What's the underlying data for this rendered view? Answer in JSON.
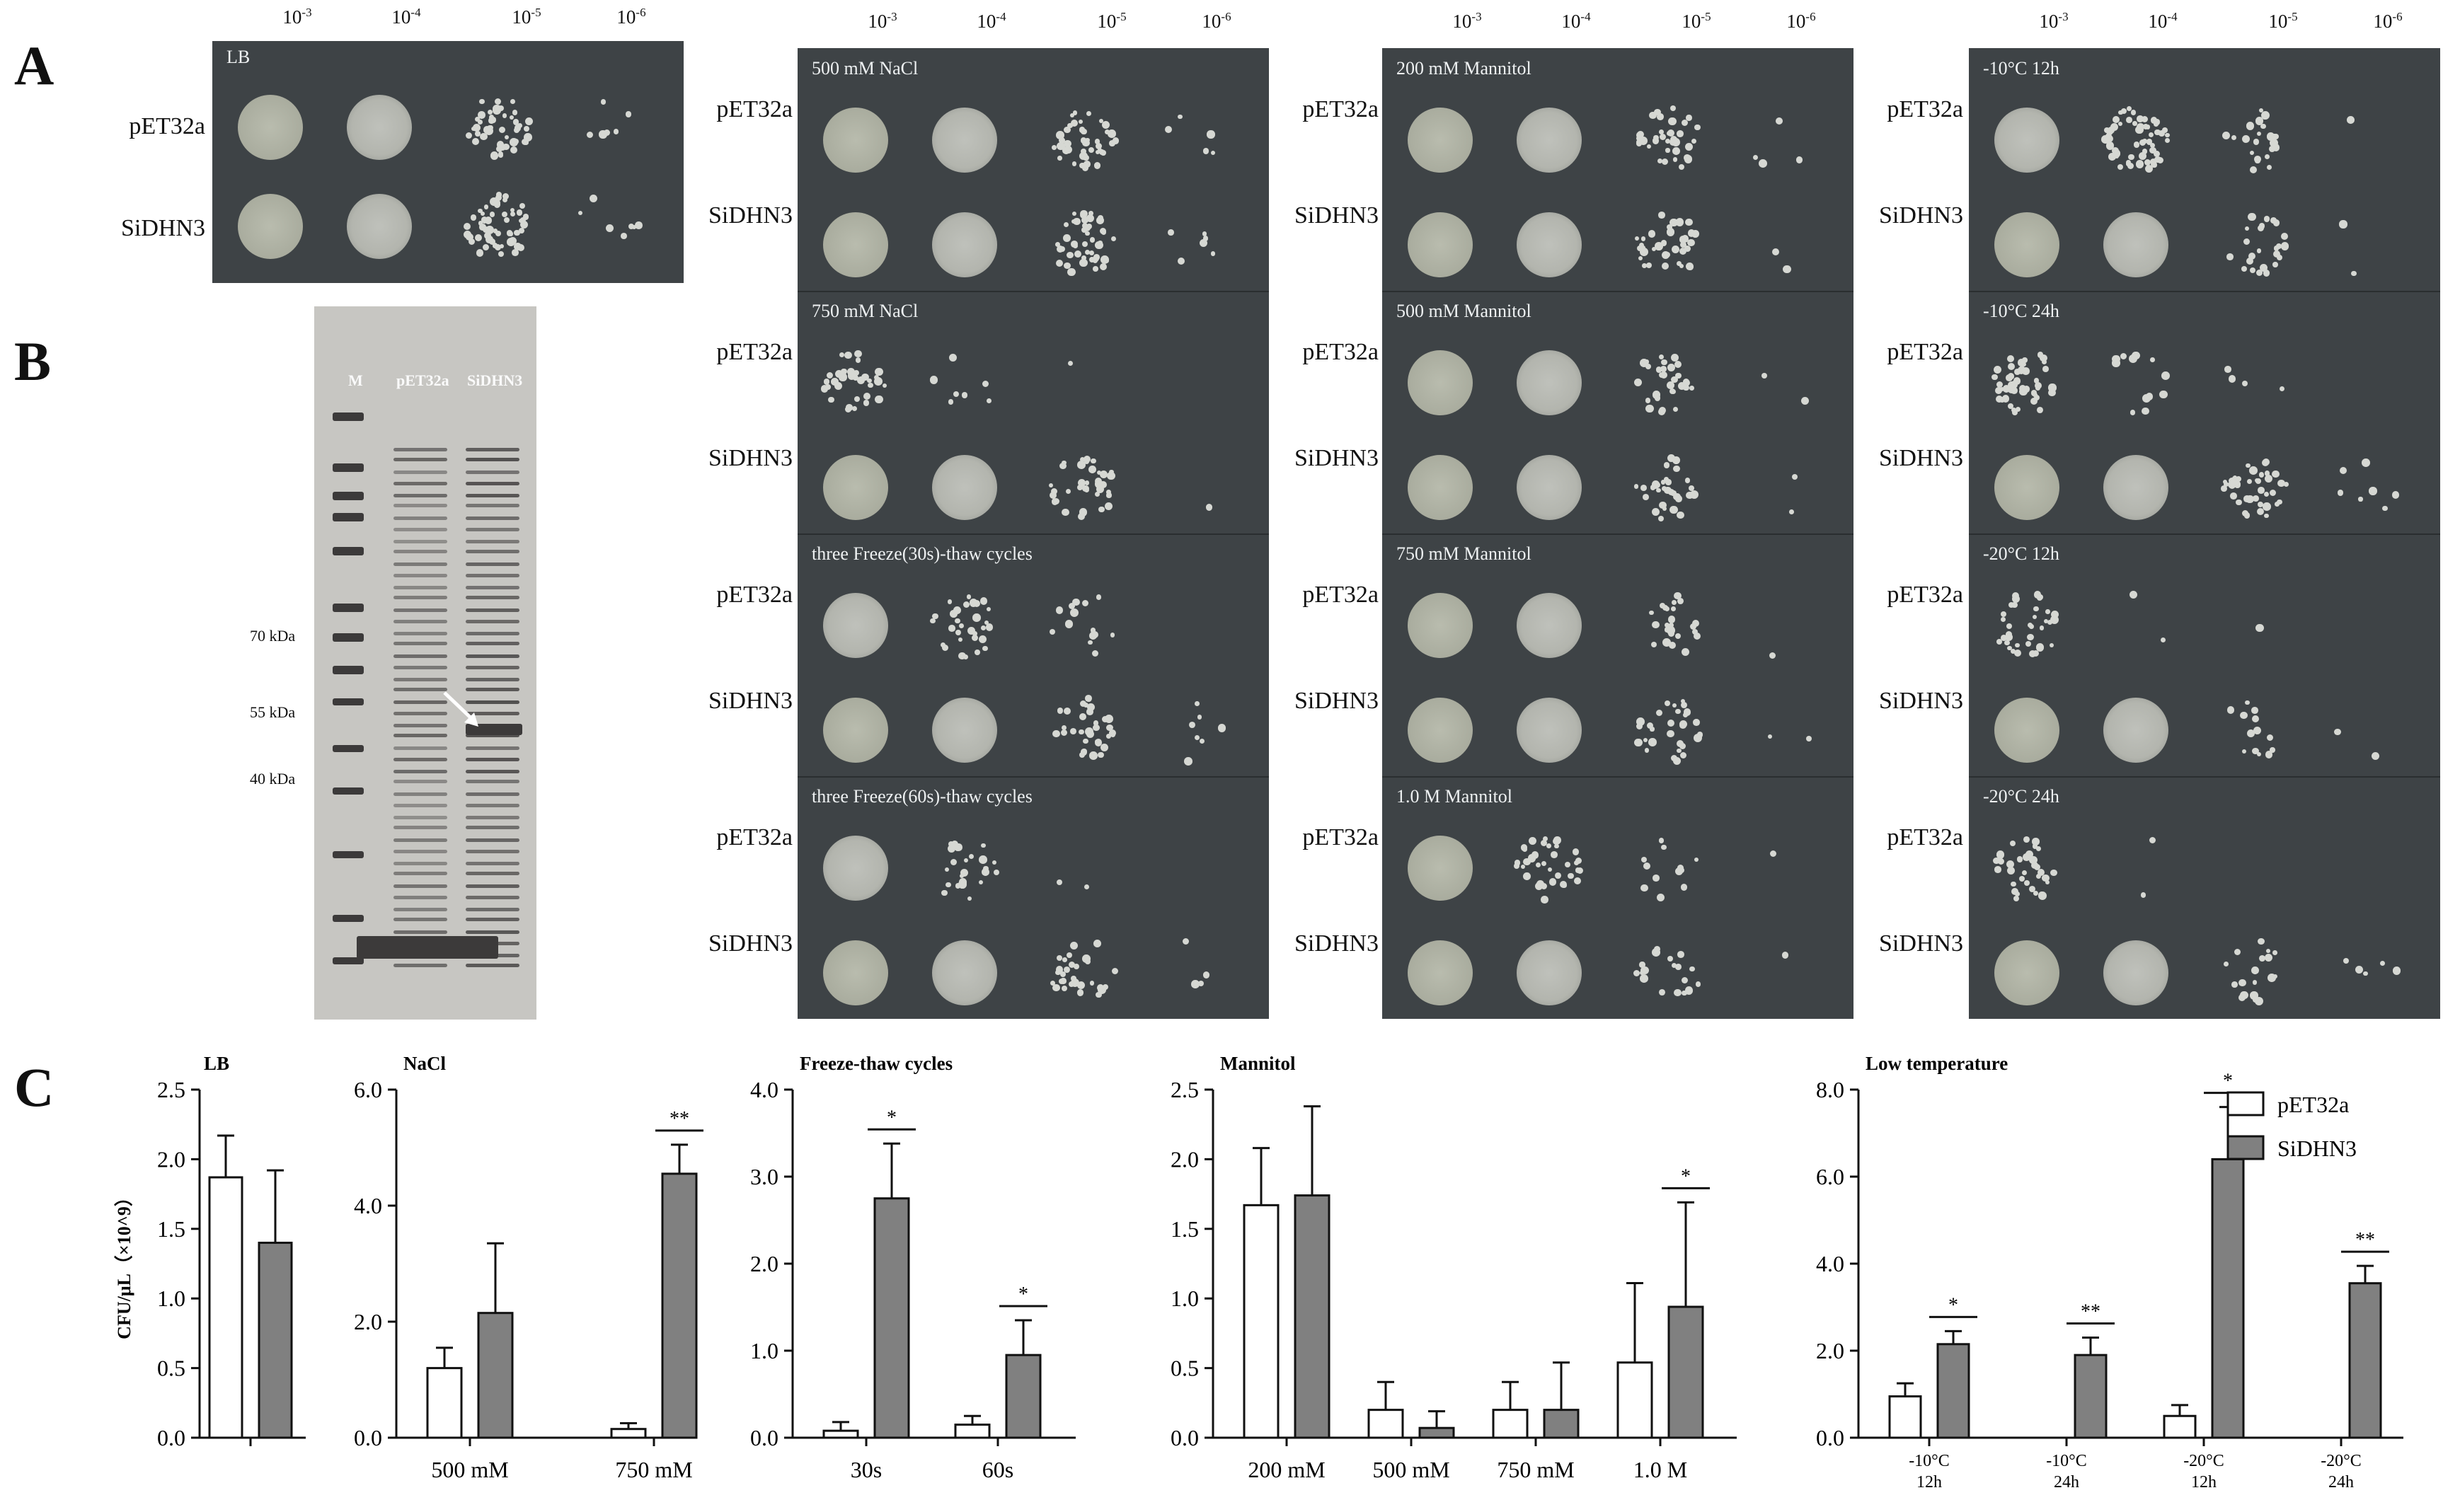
{
  "panels": {
    "a": "A",
    "b": "B",
    "c": "C"
  },
  "dilutions": [
    {
      "base": "10",
      "exp": "-3"
    },
    {
      "base": "10",
      "exp": "-4"
    },
    {
      "base": "10",
      "exp": "-5"
    },
    {
      "base": "10",
      "exp": "-6"
    }
  ],
  "strains": {
    "control": "pET32a",
    "transgenic": "SiDHN3"
  },
  "plates": {
    "lb": "LB",
    "nacl": [
      "500 mM NaCl",
      "750 mM NaCl",
      "three Freeze(30s)-thaw cycles",
      "three Freeze(60s)-thaw cycles"
    ],
    "mannitol": [
      "200 mM Mannitol",
      "500 mM Mannitol",
      "750 mM Mannitol",
      "1.0 M Mannitol"
    ],
    "cold": [
      "-10°C 12h",
      "-10°C 24h",
      "-20°C 12h",
      "-20°C 24h"
    ]
  },
  "gel": {
    "lanes": [
      "M",
      "pET32a",
      "SiDHN3"
    ],
    "markers": [
      "70 kDa",
      "55 kDa",
      "40 kDa"
    ]
  },
  "colors": {
    "plate_bg": "#3e4346",
    "bar_control": "#ffffff",
    "bar_transgenic": "#808080"
  },
  "chart_data": [
    {
      "type": "bar",
      "title": "LB",
      "ylabel": "CFU/μL（×10^9）",
      "ylim": [
        0,
        2.5
      ],
      "yticks": [
        "0.0",
        "0.5",
        "1.0",
        "1.5",
        "2.0",
        "2.5"
      ],
      "categories": [
        ""
      ],
      "series": [
        {
          "name": "pET32a",
          "values": [
            1.87
          ],
          "errors": [
            0.3
          ]
        },
        {
          "name": "SiDHN3",
          "values": [
            1.4
          ],
          "errors": [
            0.52
          ]
        }
      ],
      "significance": [
        ""
      ]
    },
    {
      "type": "bar",
      "title": "NaCl",
      "ylim": [
        0,
        6.0
      ],
      "yticks": [
        "0.0",
        "2.0",
        "4.0",
        "6.0"
      ],
      "categories": [
        "500 mM",
        "750 mM"
      ],
      "series": [
        {
          "name": "pET32a",
          "values": [
            1.2,
            0.15
          ],
          "errors": [
            0.35,
            0.1
          ]
        },
        {
          "name": "SiDHN3",
          "values": [
            2.15,
            4.55
          ],
          "errors": [
            1.2,
            0.5
          ]
        }
      ],
      "significance": [
        "",
        "**"
      ]
    },
    {
      "type": "bar",
      "title": "Freeze-thaw cycles",
      "ylim": [
        0,
        4.0
      ],
      "yticks": [
        "0.0",
        "1.0",
        "2.0",
        "3.0",
        "4.0"
      ],
      "categories": [
        "30s",
        "60s"
      ],
      "series": [
        {
          "name": "pET32a",
          "values": [
            0.08,
            0.15
          ],
          "errors": [
            0.1,
            0.1
          ]
        },
        {
          "name": "SiDHN3",
          "values": [
            2.75,
            0.95
          ],
          "errors": [
            0.63,
            0.4
          ]
        }
      ],
      "significance": [
        "*",
        "*"
      ]
    },
    {
      "type": "bar",
      "title": "Mannitol",
      "ylim": [
        0,
        2.5
      ],
      "yticks": [
        "0.0",
        "0.5",
        "1.0",
        "1.5",
        "2.0",
        "2.5"
      ],
      "categories": [
        "200 mM",
        "500 mM",
        "750 mM",
        "1.0 M"
      ],
      "series": [
        {
          "name": "pET32a",
          "values": [
            1.67,
            0.2,
            0.2,
            0.54
          ],
          "errors": [
            0.41,
            0.2,
            0.2,
            0.57
          ]
        },
        {
          "name": "SiDHN3",
          "values": [
            1.74,
            0.07,
            0.2,
            0.94
          ],
          "errors": [
            0.64,
            0.12,
            0.34,
            0.75
          ]
        }
      ],
      "significance": [
        "",
        "",
        "",
        "*"
      ]
    },
    {
      "type": "bar",
      "title": "Low temperature",
      "ylim": [
        0,
        8.0
      ],
      "yticks": [
        "0.0",
        "2.0",
        "4.0",
        "6.0",
        "8.0"
      ],
      "categories": [
        [
          "-10°C",
          "12h"
        ],
        [
          "-10°C",
          "24h"
        ],
        [
          "-20°C",
          "12h"
        ],
        [
          "-20°C",
          "24h"
        ]
      ],
      "series": [
        {
          "name": "pET32a",
          "values": [
            0.95,
            0,
            0.5,
            0
          ],
          "errors": [
            0.3,
            0,
            0.25,
            0
          ]
        },
        {
          "name": "SiDHN3",
          "values": [
            2.15,
            1.9,
            6.4,
            3.55
          ],
          "errors": [
            0.3,
            0.4,
            1.2,
            0.4
          ]
        }
      ],
      "significance": [
        "*",
        "**",
        "*",
        "**"
      ],
      "legend": {
        "position": "top-right",
        "entries": [
          "pET32a",
          "SiDHN3"
        ]
      }
    }
  ]
}
